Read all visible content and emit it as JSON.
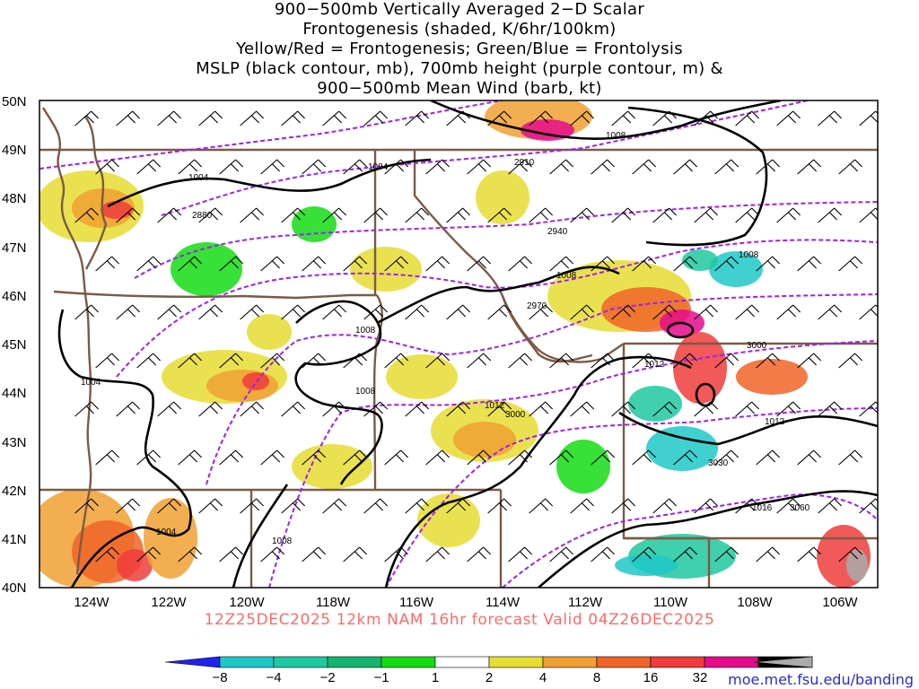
{
  "title": {
    "lines": [
      "900−500mb Vertically Averaged 2−D Scalar",
      "Frontogenesis (shaded, K/6hr/100km)",
      "Yellow/Red = Frontogenesis;  Green/Blue = Frontolysis",
      "MSLP (black contour, mb), 700mb height (purple contour, m) &",
      "900−500mb Mean Wind (barb, kt)"
    ]
  },
  "map": {
    "lat_labels": [
      "50N",
      "49N",
      "48N",
      "47N",
      "46N",
      "45N",
      "44N",
      "43N",
      "42N",
      "41N",
      "40N"
    ],
    "lon_labels": [
      "124W",
      "122W",
      "120W",
      "118W",
      "116W",
      "114W",
      "112W",
      "110W",
      "108W",
      "106W"
    ],
    "mslp_labels": [
      "1008",
      "1004",
      "1004",
      "1008",
      "1008",
      "1008",
      "1008",
      "1004",
      "1012",
      "1012",
      "1012",
      "1016",
      "1004",
      "1008"
    ],
    "height_labels": [
      "2910",
      "2880",
      "2940",
      "2970",
      "3000",
      "3000",
      "3030",
      "3060"
    ],
    "colors": {
      "frontolysis_blue": "#2f4fe0",
      "frontogenesis_red": "#ff4646",
      "mslp_contour": "#000000",
      "height_contour": "#a020f0",
      "borders": "#7b5a45"
    }
  },
  "colorbar": {
    "labels": [
      "−8",
      "−4",
      "−2",
      "−1",
      "1",
      "2",
      "4",
      "8",
      "16",
      "32"
    ],
    "colors": [
      "#2222ee",
      "#1ec8c8",
      "#1ec8a0",
      "#14b46e",
      "#14dc14",
      "#ffffff",
      "#e6dc32",
      "#f0a032",
      "#f06428",
      "#f03c3c",
      "#e60a8c",
      "#000000",
      "#aaaaaa"
    ]
  },
  "forecast_text": "12Z25DEC2025  12km NAM 16hr forecast Valid 04Z26DEC2025",
  "credit": "moe.met.fsu.edu/banding"
}
